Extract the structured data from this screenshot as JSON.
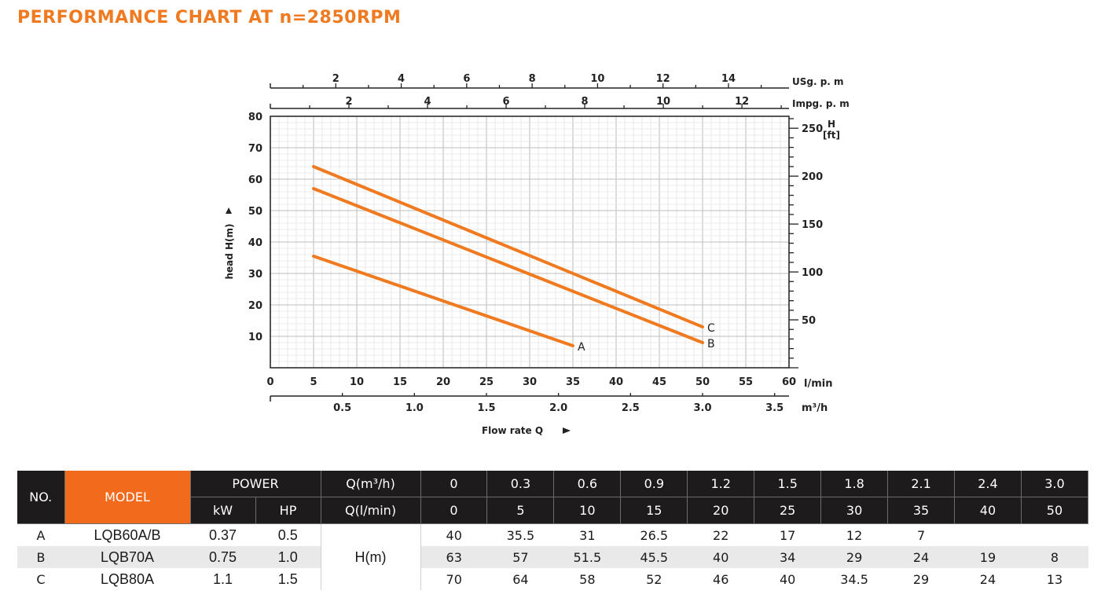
{
  "title": "PERFORMANCE CHART AT n=2850RPM",
  "chart_data": {
    "type": "line",
    "x_axis": {
      "label": "Flow rate Q",
      "unit": "l/min",
      "range": [
        0,
        60
      ],
      "ticks": [
        "0",
        "5",
        "10",
        "15",
        "20",
        "25",
        "30",
        "35",
        "40",
        "45",
        "50",
        "55",
        "60"
      ]
    },
    "x_axis_m3h": {
      "unit": "m³/h",
      "ticks": [
        "0.5",
        "1.0",
        "1.5",
        "2.0",
        "2.5",
        "3.0",
        "3.5"
      ]
    },
    "x_axis_usgpm": {
      "unit": "USg. p. m",
      "ticks": [
        "2",
        "4",
        "6",
        "8",
        "10",
        "12",
        "14"
      ]
    },
    "x_axis_impgpm": {
      "unit": "Impg. p. m",
      "ticks": [
        "2",
        "4",
        "6",
        "8",
        "10",
        "12"
      ]
    },
    "y_axis": {
      "label": "head H(m)",
      "range": [
        0,
        80
      ],
      "ticks": [
        "10",
        "20",
        "30",
        "40",
        "50",
        "60",
        "70",
        "80"
      ]
    },
    "y_axis_ft": {
      "unit_top": "H",
      "unit_bottom": "[ft]",
      "ticks": [
        "250",
        "200",
        "150",
        "100",
        "50"
      ]
    },
    "series": [
      {
        "name": "A",
        "x": [
          5,
          35
        ],
        "y": [
          35.5,
          7
        ]
      },
      {
        "name": "B",
        "x": [
          5,
          50
        ],
        "y": [
          57,
          8
        ]
      },
      {
        "name": "C",
        "x": [
          5,
          50
        ],
        "y": [
          64,
          13
        ]
      }
    ],
    "grid": true,
    "line_color": "#f07a20"
  },
  "table": {
    "head": {
      "no": "NO.",
      "model": "MODEL",
      "power": "POWER",
      "kw": "kW",
      "hp": "HP",
      "q_m3h": "Q(m³/h)",
      "q_lmin": "Q(l/min)"
    },
    "q_m3h": [
      "0",
      "0.3",
      "0.6",
      "0.9",
      "1.2",
      "1.5",
      "1.8",
      "2.1",
      "2.4",
      "3.0"
    ],
    "q_lmin": [
      "0",
      "5",
      "10",
      "15",
      "20",
      "25",
      "30",
      "35",
      "40",
      "50"
    ],
    "h_label": "H(m)",
    "rows": [
      {
        "no": "A",
        "model": "LQB60A/B",
        "kw": "0.37",
        "hp": "0.5",
        "h": [
          "40",
          "35.5",
          "31",
          "26.5",
          "22",
          "17",
          "12",
          "7",
          "",
          ""
        ]
      },
      {
        "no": "B",
        "model": "LQB70A",
        "kw": "0.75",
        "hp": "1.0",
        "h": [
          "63",
          "57",
          "51.5",
          "45.5",
          "40",
          "34",
          "29",
          "24",
          "19",
          "8"
        ]
      },
      {
        "no": "C",
        "model": "LQB80A",
        "kw": "1.1",
        "hp": "1.5",
        "h": [
          "70",
          "64",
          "58",
          "52",
          "46",
          "40",
          "34.5",
          "29",
          "24",
          "13"
        ]
      }
    ]
  }
}
